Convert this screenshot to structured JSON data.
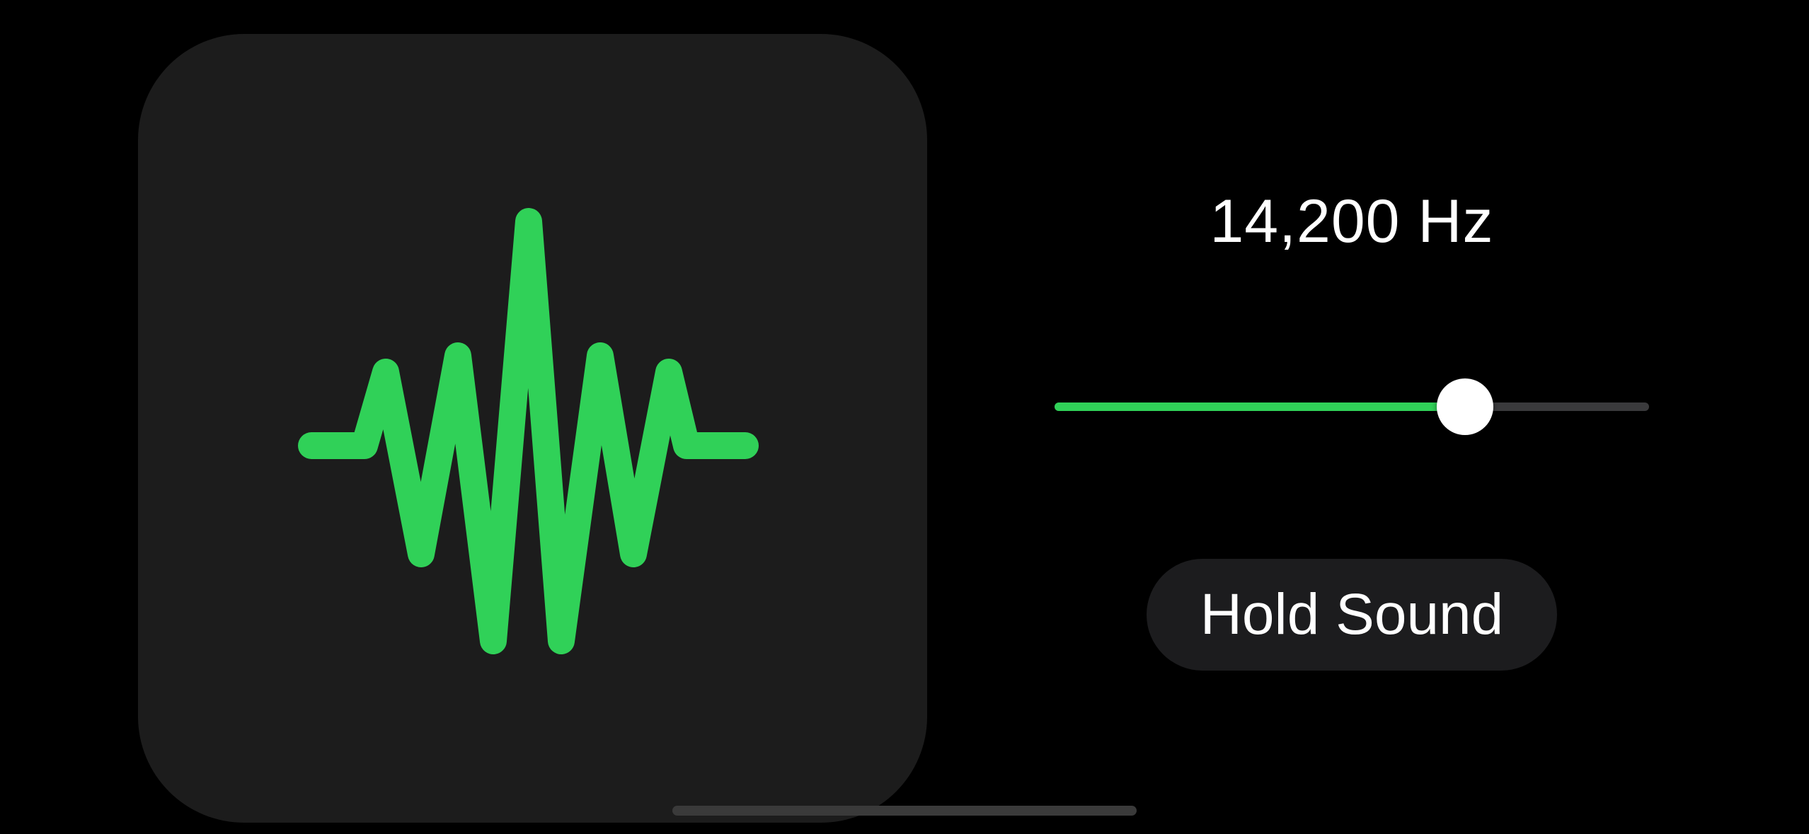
{
  "tone_generator": {
    "frequency_readout": "14,200 Hz",
    "slider": {
      "value_fraction": 0.69
    },
    "hold_button_label": "Hold Sound"
  },
  "icons": {
    "waveform": "waveform-icon"
  },
  "colors": {
    "background": "#000000",
    "card": "#1c1c1c",
    "accent_green": "#30d158",
    "slider_track": "#3a3a3c",
    "button_bg": "#1c1c1e",
    "text": "#ffffff"
  }
}
